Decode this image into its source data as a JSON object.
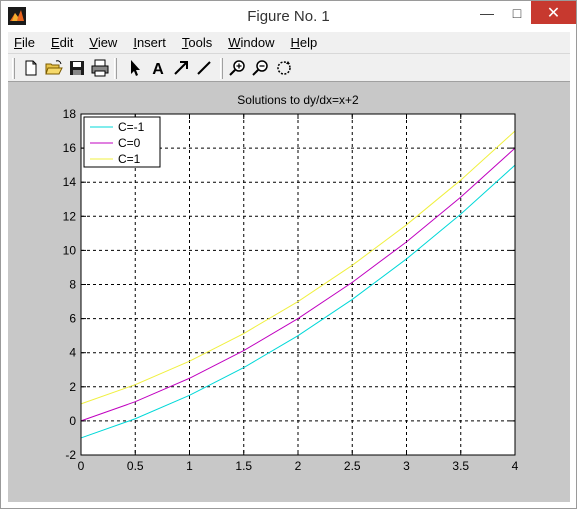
{
  "window": {
    "title": "Figure No. 1",
    "minimize_glyph": "—",
    "maximize_glyph": "□",
    "close_glyph": "✕"
  },
  "menu": {
    "items": [
      {
        "label": "File",
        "key": "F"
      },
      {
        "label": "Edit",
        "key": "E"
      },
      {
        "label": "View",
        "key": "V"
      },
      {
        "label": "Insert",
        "key": "I"
      },
      {
        "label": "Tools",
        "key": "T"
      },
      {
        "label": "Window",
        "key": "W"
      },
      {
        "label": "Help",
        "key": "H"
      }
    ]
  },
  "toolbar": {
    "icons": [
      "new-file-icon",
      "open-file-icon",
      "save-icon",
      "print-icon",
      "arrow-select-icon",
      "text-insert-icon",
      "arrow-insert-icon",
      "line-insert-icon",
      "zoom-in-icon",
      "zoom-out-icon",
      "rotate-icon"
    ]
  },
  "colors": {
    "figure_bg": "#c8c8c8",
    "axes_bg": "#ffffff",
    "series_cminus1": "#00d8d8",
    "series_c0": "#c000c0",
    "series_c1": "#f0f040",
    "close_button": "#c7392f"
  },
  "chart_data": {
    "type": "line",
    "title": "Solutions to dy/dx=x+2",
    "xlabel": "",
    "ylabel": "",
    "xlim": [
      0,
      4
    ],
    "ylim": [
      -2,
      18
    ],
    "xticks": [
      0,
      0.5,
      1,
      1.5,
      2,
      2.5,
      3,
      3.5,
      4
    ],
    "xtick_labels": [
      "0",
      "0.5",
      "1",
      "1.5",
      "2",
      "2.5",
      "3",
      "3.5",
      "4"
    ],
    "yticks": [
      -2,
      0,
      2,
      4,
      6,
      8,
      10,
      12,
      14,
      16,
      18
    ],
    "ytick_labels": [
      "-2",
      "0",
      "2",
      "4",
      "6",
      "8",
      "10",
      "12",
      "14",
      "16",
      "18"
    ],
    "grid": true,
    "grid_style": "dashed",
    "legend_position": "top-left",
    "x": [
      0,
      0.5,
      1,
      1.5,
      2,
      2.5,
      3,
      3.5,
      4
    ],
    "series": [
      {
        "name": "C=-1",
        "color": "#00d8d8",
        "values": [
          -1,
          0.125,
          1.5,
          3.125,
          5,
          7.125,
          9.5,
          12.125,
          15
        ]
      },
      {
        "name": "C=0",
        "color": "#c000c0",
        "values": [
          0,
          1.125,
          2.5,
          4.125,
          6,
          8.125,
          10.5,
          13.125,
          16
        ]
      },
      {
        "name": "C=1",
        "color": "#f0f040",
        "values": [
          1,
          2.125,
          3.5,
          5.125,
          7,
          9.125,
          11.5,
          14.125,
          17
        ]
      }
    ]
  }
}
